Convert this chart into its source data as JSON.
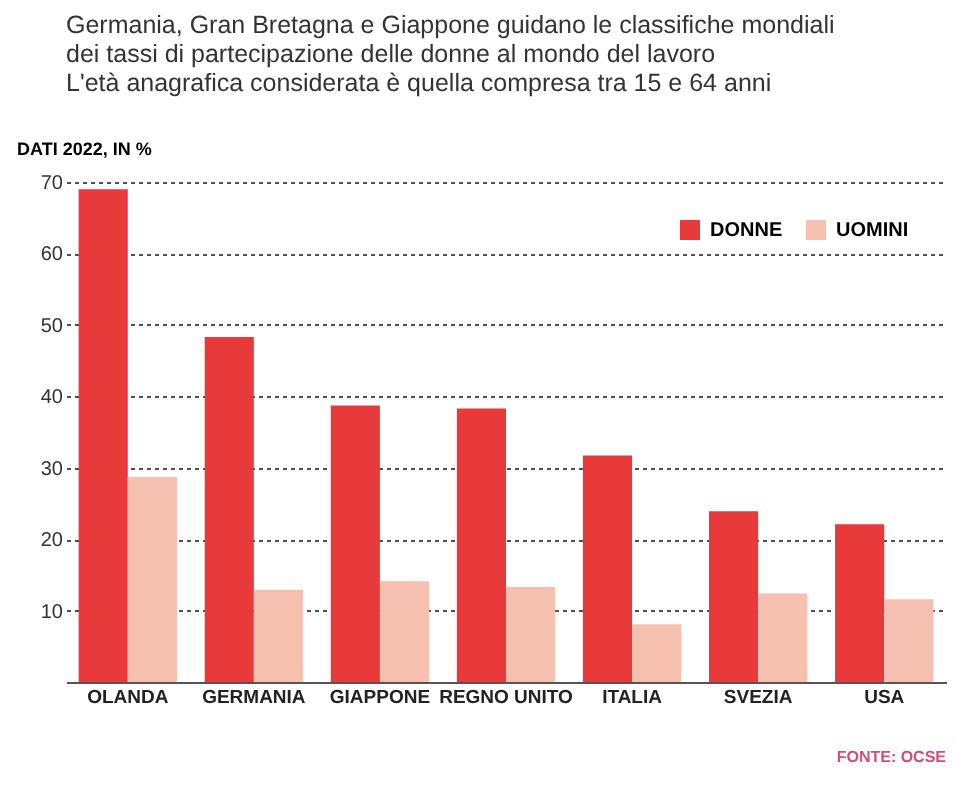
{
  "chart_data": {
    "type": "bar",
    "title": [
      "Germania, Gran Bretagna e Giappone guidano le classifiche mondiali",
      "dei tassi di partecipazione delle donne al mondo del lavoro",
      "L'età anagrafica considerata è quella compresa tra 15 e 64 anni"
    ],
    "ylabel": "DATI 2022, IN %",
    "categories": [
      "OLANDA",
      "GERMANIA",
      "GIAPPONE",
      "REGNO UNITO",
      "ITALIA",
      "SVEZIA",
      "USA"
    ],
    "series": [
      {
        "name": "DONNE",
        "color": "#e8393b",
        "values": [
          69,
          48.3,
          38.7,
          38.3,
          31.7,
          23.9,
          22.1
        ]
      },
      {
        "name": "UOMINI",
        "color": "#f5c0b0",
        "values": [
          28.7,
          12.9,
          14.1,
          13.3,
          8.1,
          12.4,
          11.6
        ]
      }
    ],
    "ylim": [
      0,
      70
    ],
    "yticks": [
      10,
      20,
      30,
      40,
      50,
      60,
      70
    ],
    "grid": "y",
    "legend": "top right",
    "annotations": [
      "FONTE: OCSE"
    ]
  }
}
